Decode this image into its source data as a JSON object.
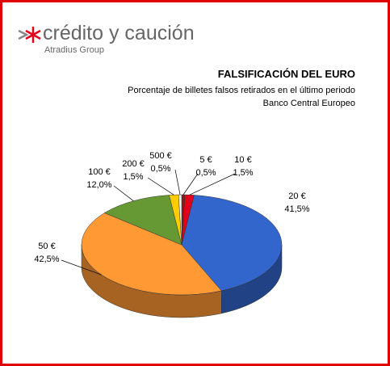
{
  "logo": {
    "name": "crédito y caución",
    "tagline": "Atradius Group"
  },
  "chart_data": {
    "type": "pie",
    "title": "FALSIFICACIÓN DEL EURO",
    "subtitle": "Porcentaje de billetes falsos retirados en el último periodo",
    "source": "Banco Central Europeo",
    "categories": [
      "5 €",
      "10 €",
      "20 €",
      "50 €",
      "100 €",
      "200 €",
      "500 €"
    ],
    "values": [
      0.5,
      1.5,
      41.5,
      42.5,
      12.0,
      1.5,
      0.5
    ],
    "value_labels": [
      "0,5%",
      "1,5%",
      "41,5%",
      "42,5%",
      "12,0%",
      "1,5%",
      "0,5%"
    ],
    "colors": [
      "#8b1a1a",
      "#e3001b",
      "#3366cc",
      "#ff9933",
      "#669933",
      "#ffcc00",
      "#f2f2f2"
    ]
  }
}
